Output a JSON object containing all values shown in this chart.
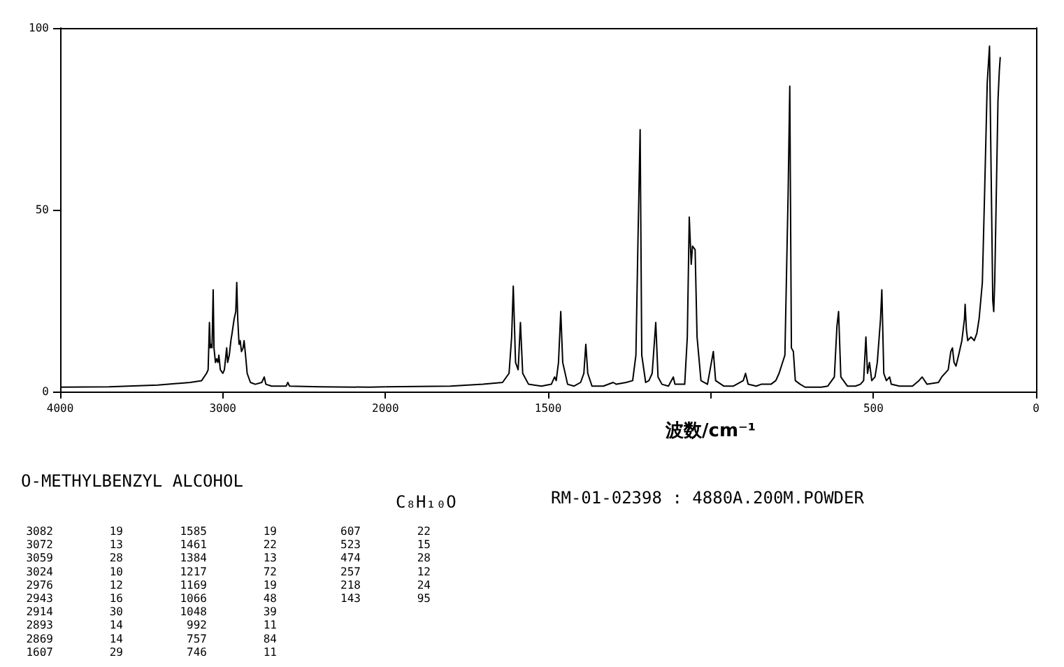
{
  "chart_data": [
    {
      "type": "line",
      "title": "O-METHYLBENZYL ALCOHOL",
      "annotations": [
        "RM-01-02398 : 4880A.200M.POWDER",
        "3082 19",
        "3072 13",
        "3059 28",
        "3024 10",
        "2976 12",
        "2943 16",
        "2914 30",
        "2893 14",
        "2869 14",
        "1607 29",
        "1585 19",
        "1461 22",
        "1384 13",
        "1217 72",
        "1169 19",
        "1066 48",
        "1048 39",
        "992 11",
        "757 84",
        "746 11",
        "607 22",
        "523 15",
        "474 28",
        "257 12",
        "218 24",
        "143 95"
      ],
      "xlim": [
        4000,
        2000
      ],
      "xticks": [
        4000,
        3000,
        2000
      ],
      "ylim": [
        0,
        100
      ],
      "yticks": [
        0,
        50,
        100
      ],
      "grid": false,
      "marker": "none",
      "line_style": "solid",
      "series": [
        {
          "color": "#000000",
          "x": [
            4000,
            3700,
            3400,
            3200,
            3130,
            3100,
            3090,
            3082,
            3077,
            3072,
            3066,
            3059,
            3054,
            3045,
            3038,
            3030,
            3024,
            3015,
            3000,
            2990,
            2976,
            2970,
            2960,
            2950,
            2943,
            2930,
            2920,
            2914,
            2908,
            2900,
            2893,
            2885,
            2875,
            2869,
            2860,
            2850,
            2830,
            2800,
            2760,
            2745,
            2735,
            2700,
            2610,
            2600,
            2590,
            2400,
            2100,
            2000
          ],
          "values": [
            1.2,
            1.3,
            1.8,
            2.5,
            3,
            5,
            6,
            19,
            12,
            13,
            12,
            28,
            12,
            8,
            9,
            8,
            10,
            6,
            5,
            6,
            12,
            8,
            10,
            14,
            16,
            20,
            22,
            30,
            20,
            13,
            14,
            11,
            12,
            14,
            10,
            5,
            2.5,
            2,
            2.5,
            4,
            2,
            1.5,
            1.5,
            2.5,
            1.5,
            1.3,
            1.2,
            1.3
          ]
        }
      ]
    },
    {
      "type": "line",
      "xlabel": "波数/cm⁻¹",
      "subtitle": "C₈H₁₀O",
      "xlim": [
        2000,
        0
      ],
      "xticks": [
        {
          "value": 2000,
          "label": null
        },
        1500,
        {
          "value": 1000,
          "label": null
        },
        500,
        0
      ],
      "ylim": [
        0,
        100
      ],
      "tick_labels": "x",
      "grid": false,
      "marker": "none",
      "line_style": "solid",
      "series": [
        {
          "color": "#000000",
          "x": [
            2000,
            1800,
            1700,
            1640,
            1620,
            1612,
            1607,
            1600,
            1592,
            1585,
            1578,
            1560,
            1520,
            1490,
            1480,
            1475,
            1468,
            1461,
            1455,
            1440,
            1420,
            1400,
            1390,
            1384,
            1378,
            1365,
            1330,
            1300,
            1290,
            1260,
            1240,
            1230,
            1224,
            1217,
            1212,
            1200,
            1190,
            1180,
            1169,
            1162,
            1150,
            1130,
            1115,
            1110,
            1080,
            1072,
            1066,
            1060,
            1056,
            1048,
            1042,
            1030,
            1010,
            992,
            985,
            960,
            930,
            900,
            893,
            885,
            860,
            845,
            815,
            800,
            790,
            772,
            762,
            757,
            752,
            746,
            740,
            725,
            710,
            660,
            640,
            620,
            612,
            607,
            600,
            580,
            555,
            540,
            530,
            523,
            518,
            512,
            505,
            495,
            488,
            478,
            474,
            468,
            460,
            450,
            445,
            420,
            380,
            360,
            350,
            335,
            300,
            290,
            270,
            262,
            257,
            252,
            246,
            238,
            228,
            220,
            218,
            214,
            210,
            200,
            190,
            182,
            175,
            165,
            158,
            150,
            143,
            138,
            133,
            130,
            127,
            122,
            117,
            113,
            110
          ],
          "values": [
            1.3,
            1.5,
            2,
            2.5,
            5,
            15,
            29,
            8,
            6,
            19,
            5,
            2,
            1.5,
            2,
            4,
            3,
            8,
            22,
            8,
            2,
            1.5,
            2.5,
            5,
            13,
            5,
            1.5,
            1.5,
            2.5,
            2,
            2.5,
            3,
            10,
            40,
            72,
            10,
            2.5,
            3,
            5,
            19,
            4,
            2,
            1.5,
            4,
            2,
            2,
            15,
            48,
            35,
            40,
            39,
            15,
            3,
            2,
            11,
            3,
            1.5,
            1.5,
            3,
            5,
            2,
            1.5,
            2,
            2,
            3,
            5,
            10,
            55,
            84,
            12,
            11,
            3,
            2,
            1.2,
            1.2,
            1.5,
            4,
            18,
            22,
            4,
            1.5,
            1.5,
            2,
            3,
            15,
            5,
            8,
            3,
            4,
            8,
            20,
            28,
            5,
            3,
            4,
            2,
            1.5,
            1.5,
            3,
            4,
            2,
            2.5,
            4,
            6,
            11,
            12,
            8,
            7,
            10,
            14,
            20,
            24,
            17,
            14,
            15,
            14,
            16,
            20,
            30,
            55,
            85,
            95,
            60,
            25,
            22,
            30,
            55,
            80,
            88,
            92
          ]
        }
      ]
    }
  ]
}
